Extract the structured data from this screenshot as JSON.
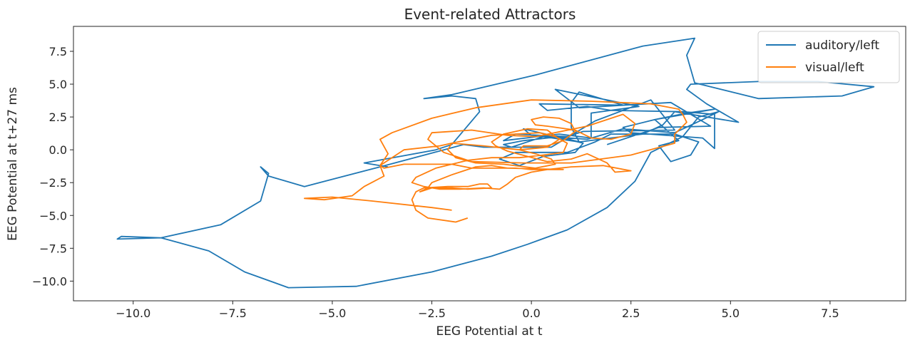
{
  "chart_data": {
    "type": "line",
    "title": "Event-related Attractors",
    "xlabel": "EEG Potential at t",
    "ylabel": "EEG Potential at t+27 ms",
    "xlim": [
      -11.5,
      9.4
    ],
    "ylim": [
      -11.5,
      9.4
    ],
    "xticks": [
      -10.0,
      -7.5,
      -5.0,
      -2.5,
      0.0,
      2.5,
      5.0,
      7.5
    ],
    "yticks": [
      -10.0,
      -7.5,
      -5.0,
      -2.5,
      0.0,
      2.5,
      5.0,
      7.5
    ],
    "xtick_labels": [
      "−10.0",
      "−7.5",
      "−5.0",
      "−2.5",
      "0.0",
      "2.5",
      "5.0",
      "7.5"
    ],
    "ytick_labels": [
      "−10.0",
      "−7.5",
      "−5.0",
      "−2.5",
      "0.0",
      "2.5",
      "5.0",
      "7.5"
    ],
    "grid": false,
    "legend_position": "top-right",
    "series": [
      {
        "name": "auditory/left",
        "color": "#1f77b4",
        "points": [
          [
            1.9,
            0.4
          ],
          [
            3.2,
            1.7
          ],
          [
            4.5,
            1.8
          ],
          [
            3.5,
            3.6
          ],
          [
            1.2,
            3.2
          ],
          [
            0.6,
            4.6
          ],
          [
            2.7,
            3.3
          ],
          [
            1.5,
            2.8
          ],
          [
            1.5,
            0.9
          ],
          [
            0.7,
            1.2
          ],
          [
            -0.7,
            0.7
          ],
          [
            -0.4,
            1.2
          ],
          [
            0.9,
            1.0
          ],
          [
            1.3,
            1.4
          ],
          [
            3.6,
            1.5
          ],
          [
            3.0,
            3.8
          ],
          [
            1.6,
            2.2
          ],
          [
            0.5,
            0.2
          ],
          [
            -1.2,
            0.2
          ],
          [
            -1.7,
            0.4
          ],
          [
            -2.2,
            0.0
          ],
          [
            -3.8,
            -1.3
          ],
          [
            -5.7,
            -2.8
          ],
          [
            -6.6,
            -2.0
          ],
          [
            -6.8,
            -1.3
          ],
          [
            -6.6,
            -1.8
          ],
          [
            -6.8,
            -3.9
          ],
          [
            -7.8,
            -5.7
          ],
          [
            -9.3,
            -6.7
          ],
          [
            -10.4,
            -6.8
          ],
          [
            -10.3,
            -6.6
          ],
          [
            -9.3,
            -6.7
          ],
          [
            -8.1,
            -7.7
          ],
          [
            -7.2,
            -9.3
          ],
          [
            -6.1,
            -10.5
          ],
          [
            -4.4,
            -10.4
          ],
          [
            -2.5,
            -9.3
          ],
          [
            -1.0,
            -8.1
          ],
          [
            -0.1,
            -7.2
          ],
          [
            0.9,
            -6.1
          ],
          [
            1.9,
            -4.4
          ],
          [
            2.6,
            -2.4
          ],
          [
            3.0,
            -0.2
          ],
          [
            3.8,
            1.0
          ],
          [
            4.2,
            2.5
          ],
          [
            4.7,
            2.9
          ],
          [
            4.3,
            2.3
          ],
          [
            3.6,
            1.3
          ],
          [
            2.3,
            1.6
          ],
          [
            1.4,
            0.8
          ],
          [
            0.0,
            1.1
          ],
          [
            -0.2,
            1.6
          ],
          [
            1.3,
            0.5
          ],
          [
            1.1,
            -0.2
          ],
          [
            0.3,
            -0.5
          ],
          [
            -0.3,
            -1.2
          ],
          [
            -0.8,
            -0.7
          ],
          [
            -0.4,
            -0.2
          ],
          [
            0.9,
            -0.2
          ],
          [
            1.6,
            0.6
          ],
          [
            2.0,
            1.2
          ],
          [
            3.6,
            1.2
          ],
          [
            4.2,
            0.6
          ],
          [
            4.0,
            -0.4
          ],
          [
            3.5,
            -0.9
          ],
          [
            3.2,
            0.3
          ],
          [
            3.7,
            0.7
          ],
          [
            3.1,
            2.3
          ],
          [
            4.6,
            3.1
          ],
          [
            3.9,
            2.8
          ],
          [
            3.1,
            2.3
          ],
          [
            2.3,
            1.7
          ],
          [
            2.5,
            1.3
          ],
          [
            4.3,
            0.9
          ],
          [
            4.6,
            0.1
          ],
          [
            4.6,
            2.7
          ],
          [
            3.8,
            2.9
          ],
          [
            2.0,
            3.0
          ],
          [
            1.4,
            3.3
          ],
          [
            0.4,
            3.0
          ],
          [
            0.2,
            3.5
          ],
          [
            2.3,
            3.4
          ],
          [
            1.2,
            4.4
          ],
          [
            1.0,
            3.6
          ],
          [
            1.0,
            1.7
          ],
          [
            1.2,
            0.6
          ],
          [
            0.7,
            1.0
          ],
          [
            -0.2,
            0.7
          ],
          [
            -0.7,
            0.4
          ],
          [
            -0.5,
            0.2
          ],
          [
            0.3,
            1.0
          ],
          [
            1.2,
            0.6
          ],
          [
            2.8,
            1.2
          ],
          [
            3.3,
            1.9
          ],
          [
            3.6,
            2.9
          ],
          [
            5.2,
            2.1
          ],
          [
            4.4,
            3.5
          ],
          [
            3.9,
            4.6
          ],
          [
            4.0,
            5.0
          ],
          [
            5.7,
            5.2
          ],
          [
            7.2,
            5.2
          ],
          [
            8.6,
            4.8
          ],
          [
            7.8,
            4.1
          ],
          [
            5.7,
            3.9
          ],
          [
            4.1,
            5.1
          ],
          [
            3.9,
            7.2
          ],
          [
            4.1,
            8.5
          ],
          [
            2.8,
            7.9
          ],
          [
            0.1,
            5.7
          ],
          [
            -2.0,
            4.2
          ],
          [
            -2.7,
            3.9
          ],
          [
            -2.0,
            4.1
          ],
          [
            -1.4,
            3.9
          ],
          [
            -1.3,
            2.9
          ],
          [
            -2.0,
            0.4
          ],
          [
            -2.4,
            0.0
          ],
          [
            -4.2,
            -1.0
          ],
          [
            -3.6,
            -1.3
          ]
        ]
      },
      {
        "name": "visual/left",
        "color": "#ff7f0e",
        "points": [
          [
            -1.6,
            -5.2
          ],
          [
            -1.9,
            -5.5
          ],
          [
            -2.6,
            -5.2
          ],
          [
            -2.9,
            -4.6
          ],
          [
            -3.0,
            -3.8
          ],
          [
            -2.9,
            -3.2
          ],
          [
            -2.7,
            -2.9
          ],
          [
            -2.1,
            -2.8
          ],
          [
            -1.6,
            -2.8
          ],
          [
            -1.3,
            -2.6
          ],
          [
            -1.1,
            -2.6
          ],
          [
            -1.0,
            -2.9
          ],
          [
            -1.6,
            -3.0
          ],
          [
            -2.0,
            -2.9
          ],
          [
            -2.5,
            -2.9
          ],
          [
            -2.8,
            -3.2
          ],
          [
            -2.6,
            -2.9
          ],
          [
            -2.5,
            -2.5
          ],
          [
            -2.0,
            -1.9
          ],
          [
            -1.4,
            -1.3
          ],
          [
            -1.0,
            -1.2
          ],
          [
            -0.6,
            -1.4
          ],
          [
            0.8,
            -1.5
          ],
          [
            0.0,
            -1.5
          ],
          [
            -0.4,
            -1.4
          ],
          [
            -1.5,
            -1.4
          ],
          [
            -2.0,
            -1.1
          ],
          [
            -2.7,
            -1.1
          ],
          [
            -3.2,
            -1.1
          ],
          [
            -3.7,
            -1.4
          ],
          [
            -3.8,
            -1.2
          ],
          [
            -3.6,
            -0.3
          ],
          [
            -3.8,
            0.8
          ],
          [
            -3.5,
            1.3
          ],
          [
            -2.5,
            2.4
          ],
          [
            -1.4,
            3.2
          ],
          [
            0.0,
            3.8
          ],
          [
            1.5,
            3.7
          ],
          [
            3.0,
            3.5
          ],
          [
            3.7,
            3.1
          ],
          [
            3.8,
            2.7
          ],
          [
            3.9,
            2.1
          ],
          [
            3.6,
            1.2
          ],
          [
            3.6,
            0.5
          ],
          [
            2.5,
            -0.4
          ],
          [
            1.0,
            -1.0
          ],
          [
            -0.2,
            -1.0
          ],
          [
            -1.5,
            -0.9
          ],
          [
            -2.2,
            -0.2
          ],
          [
            -2.6,
            0.8
          ],
          [
            -2.5,
            1.3
          ],
          [
            -1.5,
            1.5
          ],
          [
            -0.6,
            1.1
          ],
          [
            0.1,
            1.0
          ],
          [
            1.4,
            1.8
          ],
          [
            2.3,
            2.7
          ],
          [
            2.6,
            2.0
          ],
          [
            2.5,
            1.2
          ],
          [
            2.0,
            0.8
          ],
          [
            1.5,
            0.9
          ],
          [
            1.1,
            1.5
          ],
          [
            0.4,
            1.8
          ],
          [
            0.1,
            1.9
          ],
          [
            0.0,
            2.3
          ],
          [
            0.3,
            2.5
          ],
          [
            0.7,
            2.4
          ],
          [
            1.0,
            2.0
          ],
          [
            1.1,
            1.4
          ],
          [
            0.8,
            0.7
          ],
          [
            0.4,
            0.3
          ],
          [
            -0.2,
            0.3
          ],
          [
            -0.3,
            0.0
          ],
          [
            0.1,
            -0.3
          ],
          [
            0.5,
            -0.7
          ],
          [
            0.6,
            -1.1
          ],
          [
            0.1,
            -1.4
          ],
          [
            -0.7,
            -1.1
          ],
          [
            -1.4,
            -1.0
          ],
          [
            -1.9,
            -0.6
          ],
          [
            -2.1,
            0.0
          ],
          [
            -2.0,
            0.5
          ],
          [
            -1.5,
            0.8
          ],
          [
            -1.0,
            1.1
          ],
          [
            -0.4,
            1.2
          ],
          [
            0.2,
            1.3
          ],
          [
            0.6,
            1.0
          ],
          [
            0.9,
            0.5
          ],
          [
            0.8,
            -0.2
          ],
          [
            0.3,
            -0.4
          ],
          [
            -0.3,
            -0.6
          ],
          [
            -1.0,
            -0.6
          ],
          [
            -1.6,
            -0.8
          ],
          [
            -2.0,
            -1.1
          ],
          [
            -2.4,
            -1.4
          ],
          [
            -2.9,
            -2.1
          ],
          [
            -3.0,
            -2.5
          ],
          [
            -2.7,
            -2.8
          ],
          [
            -2.3,
            -3.0
          ],
          [
            -1.8,
            -3.0
          ],
          [
            -1.2,
            -2.9
          ],
          [
            -0.8,
            -3.0
          ],
          [
            -0.6,
            -2.6
          ],
          [
            -0.4,
            -2.1
          ],
          [
            0.0,
            -1.7
          ],
          [
            0.4,
            -1.5
          ],
          [
            1.0,
            -1.3
          ],
          [
            1.8,
            -1.2
          ],
          [
            2.5,
            -1.6
          ],
          [
            2.1,
            -1.7
          ],
          [
            1.9,
            -1.0
          ],
          [
            1.4,
            -0.3
          ],
          [
            1.0,
            -0.7
          ],
          [
            0.4,
            -0.9
          ],
          [
            -0.1,
            -0.5
          ],
          [
            -0.6,
            -0.1
          ],
          [
            -0.9,
            0.3
          ],
          [
            -1.0,
            0.6
          ],
          [
            -0.7,
            1.2
          ],
          [
            -0.1,
            1.6
          ],
          [
            0.4,
            1.5
          ],
          [
            0.7,
            0.8
          ],
          [
            0.4,
            0.2
          ],
          [
            -0.3,
            0.0
          ],
          [
            -1.2,
            0.3
          ],
          [
            -2.0,
            0.5
          ],
          [
            -2.3,
            0.3
          ],
          [
            -3.2,
            0.0
          ],
          [
            -3.8,
            -1.2
          ],
          [
            -3.7,
            -2.0
          ],
          [
            -4.2,
            -2.8
          ],
          [
            -4.5,
            -3.5
          ],
          [
            -5.2,
            -3.8
          ],
          [
            -5.7,
            -3.7
          ],
          [
            -5.0,
            -3.6
          ],
          [
            -4.0,
            -3.9
          ],
          [
            -2.5,
            -4.4
          ],
          [
            -2.0,
            -4.6
          ]
        ]
      }
    ]
  }
}
